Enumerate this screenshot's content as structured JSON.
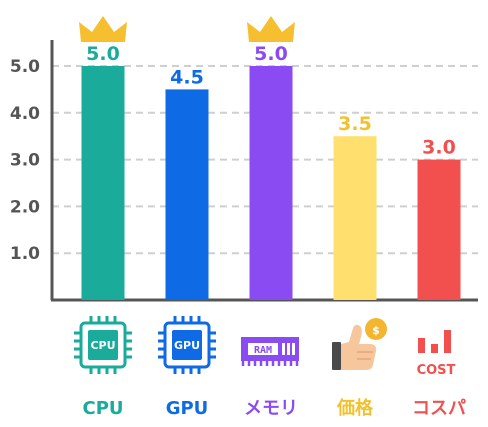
{
  "chart_data": {
    "type": "bar",
    "categories": [
      "CPU",
      "GPU",
      "メモリ",
      "価格",
      "コスパ"
    ],
    "values": [
      5.0,
      4.5,
      5.0,
      3.5,
      3.0
    ],
    "value_labels": [
      "5.0",
      "4.5",
      "5.0",
      "3.5",
      "3.0"
    ],
    "yticks": [
      "1.0",
      "2.0",
      "3.0",
      "4.0",
      "5.0"
    ],
    "ylim": [
      0,
      5
    ],
    "grid": true,
    "colors": [
      "#1aab9b",
      "#0f6ae6",
      "#8a4cf2",
      "#ffe06e",
      "#f2504f"
    ],
    "label_colors": [
      "#1aab9b",
      "#0f6ae6",
      "#8a4cf2",
      "#f2c22e",
      "#f2504f"
    ],
    "crowned": [
      "CPU",
      "メモリ"
    ],
    "icons": [
      "cpu-chip-icon",
      "gpu-chip-icon",
      "ram-module-icon",
      "thumbs-up-coin-icon",
      "cost-bars-icon"
    ],
    "icon_texts": {
      "cpu": "CPU",
      "gpu": "GPU",
      "ram": "RAM",
      "cost": "COST",
      "coin": "$"
    }
  }
}
